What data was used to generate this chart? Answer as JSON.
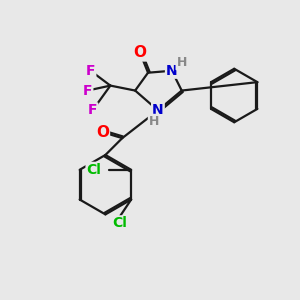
{
  "bg_color": "#e8e8e8",
  "bond_color": "#1a1a1a",
  "bond_width": 1.6,
  "atom_colors": {
    "O": "#ff0000",
    "N": "#0000cc",
    "F": "#cc00cc",
    "Cl": "#00bb00",
    "H": "#888888",
    "C": "#1a1a1a"
  },
  "font_size": 10,
  "fig_size": [
    3.0,
    3.0
  ],
  "dpi": 100
}
